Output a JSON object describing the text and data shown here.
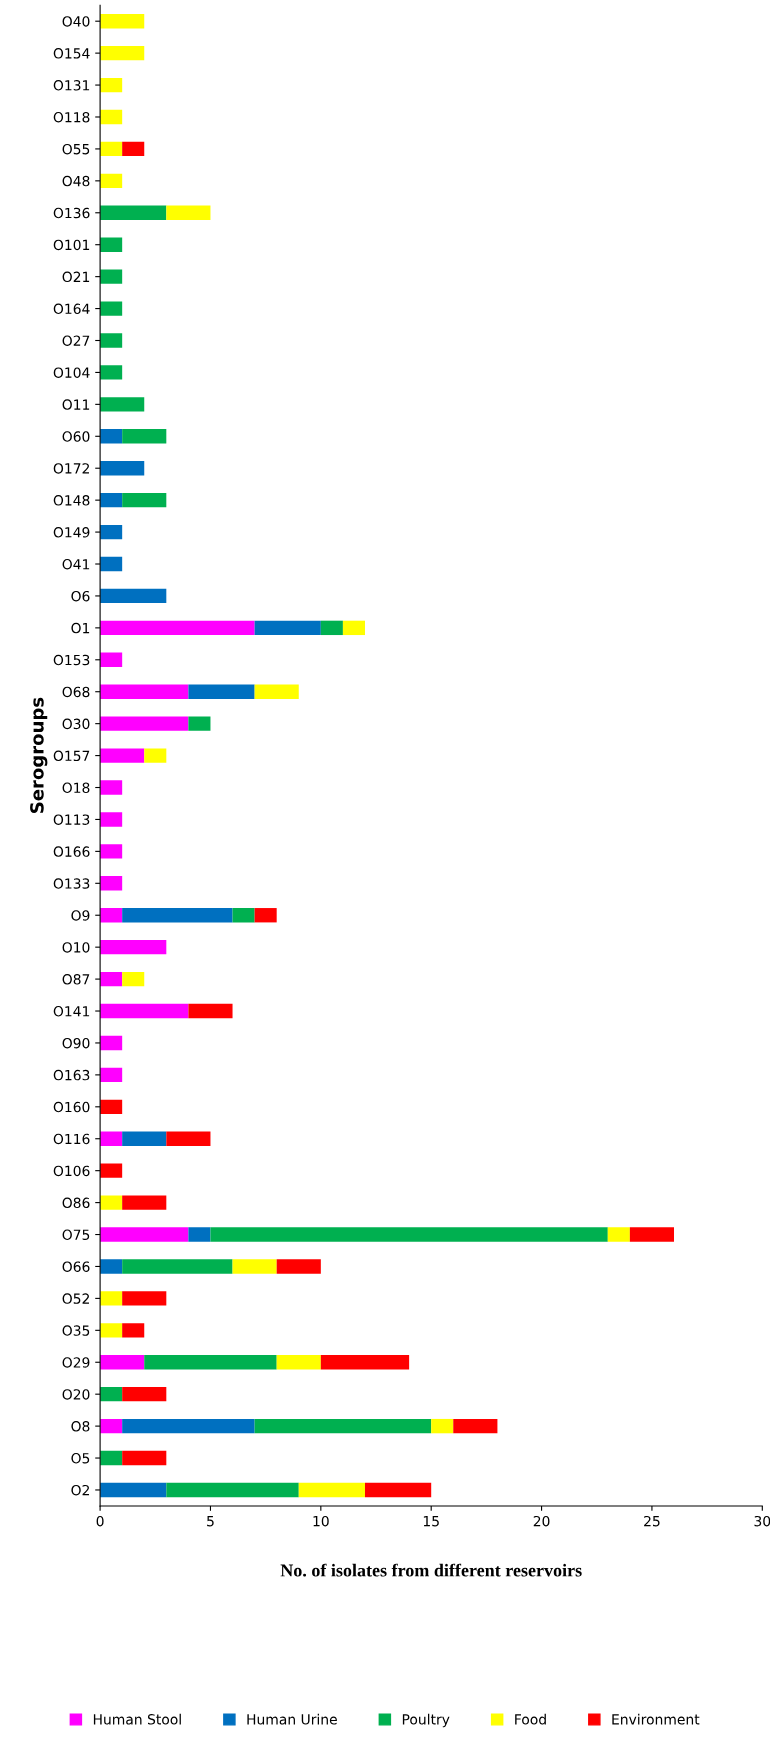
{
  "chart_data": {
    "type": "bar",
    "orientation": "horizontal",
    "stacked": true,
    "xlabel": "No. of isolates from different reservoirs",
    "ylabel": "Serogroups",
    "categories": [
      "O40",
      "O154",
      "O131",
      "O118",
      "O55",
      "O48",
      "O136",
      "O101",
      "O21",
      "O164",
      "O27",
      "O104",
      "O11",
      "O60",
      "O172",
      "O148",
      "O149",
      "O41",
      "O6",
      "O1",
      "O153",
      "O68",
      "O30",
      "O157",
      "O18",
      "O113",
      "O166",
      "O133",
      "O9",
      "O10",
      "O87",
      "O141",
      "O90",
      "O163",
      "O160",
      "O116",
      "O106",
      "O86",
      "O75",
      "O66",
      "O52",
      "O35",
      "O29",
      "O20",
      "O8",
      "O5",
      "O2"
    ],
    "series": [
      {
        "name": "Human Stool",
        "color": "#ff00ff",
        "values": [
          0,
          0,
          0,
          0,
          0,
          0,
          0,
          0,
          0,
          0,
          0,
          0,
          0,
          0,
          0,
          0,
          0,
          0,
          0,
          7,
          1,
          4,
          4,
          2,
          1,
          1,
          1,
          1,
          1,
          3,
          1,
          4,
          1,
          1,
          0,
          1,
          0,
          0,
          4,
          0,
          0,
          0,
          2,
          0,
          1,
          0,
          0
        ]
      },
      {
        "name": "Human Urine",
        "color": "#0070c0",
        "values": [
          0,
          0,
          0,
          0,
          0,
          0,
          0,
          0,
          0,
          0,
          0,
          0,
          0,
          1,
          2,
          1,
          1,
          1,
          3,
          3,
          0,
          3,
          0,
          0,
          0,
          0,
          0,
          0,
          5,
          0,
          0,
          0,
          0,
          0,
          0,
          2,
          0,
          0,
          1,
          1,
          0,
          0,
          0,
          0,
          6,
          0,
          3
        ]
      },
      {
        "name": "Poultry",
        "color": "#00b050",
        "values": [
          0,
          0,
          0,
          0,
          0,
          0,
          3,
          1,
          1,
          1,
          1,
          1,
          2,
          2,
          0,
          2,
          0,
          0,
          0,
          1,
          0,
          0,
          1,
          0,
          0,
          0,
          0,
          0,
          1,
          0,
          0,
          0,
          0,
          0,
          0,
          0,
          0,
          0,
          18,
          5,
          0,
          0,
          6,
          1,
          8,
          1,
          6
        ]
      },
      {
        "name": "Food",
        "color": "#ffff00",
        "values": [
          2,
          2,
          1,
          1,
          1,
          1,
          2,
          0,
          0,
          0,
          0,
          0,
          0,
          0,
          0,
          0,
          0,
          0,
          0,
          1,
          0,
          2,
          0,
          1,
          0,
          0,
          0,
          0,
          0,
          0,
          1,
          0,
          0,
          0,
          0,
          0,
          0,
          1,
          1,
          2,
          1,
          1,
          2,
          0,
          1,
          0,
          3
        ]
      },
      {
        "name": "Environment",
        "color": "#ff0000",
        "values": [
          0,
          0,
          0,
          0,
          1,
          0,
          0,
          0,
          0,
          0,
          0,
          0,
          0,
          0,
          0,
          0,
          0,
          0,
          0,
          0,
          0,
          0,
          0,
          0,
          0,
          0,
          0,
          0,
          1,
          0,
          0,
          2,
          0,
          0,
          1,
          2,
          1,
          2,
          2,
          2,
          2,
          1,
          4,
          2,
          2,
          2,
          3
        ]
      }
    ],
    "xlim": [
      0,
      30
    ],
    "xticks": [
      0,
      5,
      10,
      15,
      20,
      25,
      30
    ],
    "grid": false,
    "legend": "bottom"
  }
}
